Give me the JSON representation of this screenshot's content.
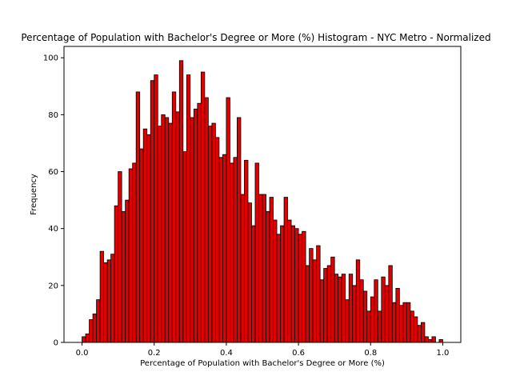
{
  "chart_data": {
    "type": "bar",
    "title": "Percentage of Population with Bachelor's Degree or More (%) Histogram - NYC Metro - Normalized",
    "xlabel": "Percentage of Population with Bachelor's Degree or More (%)",
    "ylabel": "Frequency",
    "xlim": [
      -0.05,
      1.05
    ],
    "ylim": [
      0,
      104
    ],
    "x_ticks": [
      0.0,
      0.2,
      0.4,
      0.6,
      0.8,
      1.0
    ],
    "x_tick_labels": [
      "0.0",
      "0.2",
      "0.4",
      "0.6",
      "0.8",
      "1.0"
    ],
    "y_ticks": [
      0,
      20,
      40,
      60,
      80,
      100
    ],
    "y_tick_labels": [
      "0",
      "20",
      "40",
      "60",
      "80",
      "100"
    ],
    "bin_start": 0.0,
    "bin_width": 0.01,
    "bar_color": "#e00000",
    "edge_color": "#000000",
    "grid": false,
    "values": [
      2,
      3,
      8,
      10,
      15,
      32,
      28,
      29,
      31,
      48,
      60,
      46,
      50,
      61,
      63,
      88,
      68,
      75,
      73,
      92,
      94,
      76,
      80,
      79,
      77,
      88,
      81,
      99,
      67,
      94,
      79,
      82,
      84,
      95,
      86,
      76,
      77,
      72,
      65,
      66,
      86,
      63,
      65,
      79,
      52,
      64,
      49,
      41,
      63,
      52,
      52,
      46,
      51,
      43,
      38,
      41,
      51,
      43,
      41,
      40,
      38,
      39,
      27,
      33,
      29,
      34,
      22,
      26,
      27,
      30,
      24,
      23,
      24,
      15,
      24,
      20,
      29,
      22,
      18,
      11,
      16,
      22,
      11,
      23,
      20,
      27,
      14,
      19,
      13,
      14,
      14,
      11,
      9,
      6,
      7,
      2,
      1,
      2,
      0,
      1
    ]
  }
}
